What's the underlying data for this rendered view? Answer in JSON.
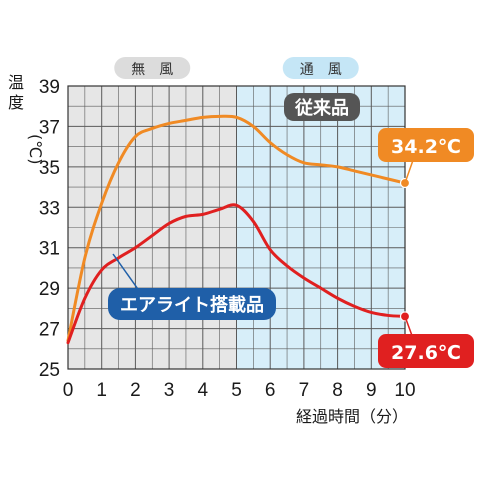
{
  "chart_data": {
    "type": "line",
    "xlabel": "経過時間（分）",
    "ylabel_line1": "温",
    "ylabel_line2": "度",
    "ylabel_unit": "(℃)",
    "xlim": [
      0,
      10
    ],
    "ylim": [
      25,
      39
    ],
    "x_ticks": [
      "0",
      "1",
      "2",
      "3",
      "4",
      "5",
      "6",
      "7",
      "8",
      "9",
      "10"
    ],
    "y_ticks": [
      "25",
      "27",
      "29",
      "31",
      "33",
      "35",
      "37",
      "39"
    ],
    "grid": true,
    "regions": [
      {
        "label": "無　風",
        "x_start": 0,
        "x_end": 5,
        "color": "#e6e6e6",
        "label_bg": "#dcdcdc"
      },
      {
        "label": "通　風",
        "x_start": 5,
        "x_end": 10,
        "color": "#d7eef9",
        "label_bg": "#c5e6f6"
      }
    ],
    "series": [
      {
        "name": "従来品",
        "color": "#f08a24",
        "label_bg": "#555555",
        "end_label": "34.2℃",
        "x": [
          0,
          0.5,
          1,
          1.5,
          2,
          2.5,
          3,
          3.5,
          4,
          4.5,
          5,
          5.5,
          6,
          6.5,
          7,
          7.5,
          8,
          8.5,
          9,
          9.5,
          10
        ],
        "y": [
          26.4,
          30.5,
          33.2,
          35.2,
          36.5,
          36.9,
          37.15,
          37.3,
          37.45,
          37.5,
          37.45,
          37.0,
          36.2,
          35.6,
          35.2,
          35.1,
          35.0,
          34.8,
          34.6,
          34.4,
          34.2
        ]
      },
      {
        "name": "エアライト搭載品",
        "color": "#e02020",
        "label_bg": "#1f5fa8",
        "end_label": "27.6℃",
        "x": [
          0,
          0.5,
          1,
          1.5,
          2,
          2.5,
          3,
          3.5,
          4,
          4.5,
          5,
          5.5,
          6,
          6.5,
          7,
          7.5,
          8,
          8.5,
          9,
          9.5,
          10
        ],
        "y": [
          26.3,
          28.5,
          29.9,
          30.5,
          31.0,
          31.6,
          32.2,
          32.55,
          32.65,
          32.9,
          33.1,
          32.3,
          30.9,
          30.1,
          29.5,
          29.0,
          28.5,
          28.1,
          27.8,
          27.65,
          27.6
        ]
      }
    ]
  }
}
